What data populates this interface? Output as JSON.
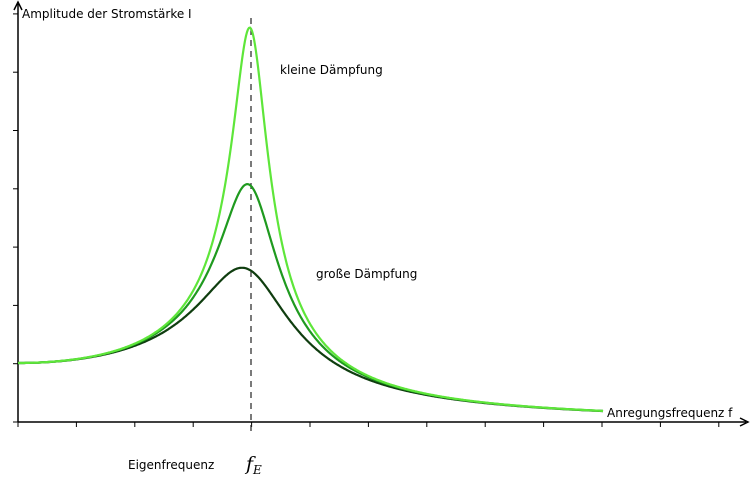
{
  "axes": {
    "y_label": "Amplitude der Stromstärke I",
    "x_label": "Anregungsfrequenz f"
  },
  "curves": [
    {
      "label": "kleine Dämpfung"
    },
    {
      "label": "große Dämpfung"
    }
  ],
  "marker": {
    "label": "Eigenfrequenz",
    "symbol": "f",
    "subscript": "E"
  }
}
